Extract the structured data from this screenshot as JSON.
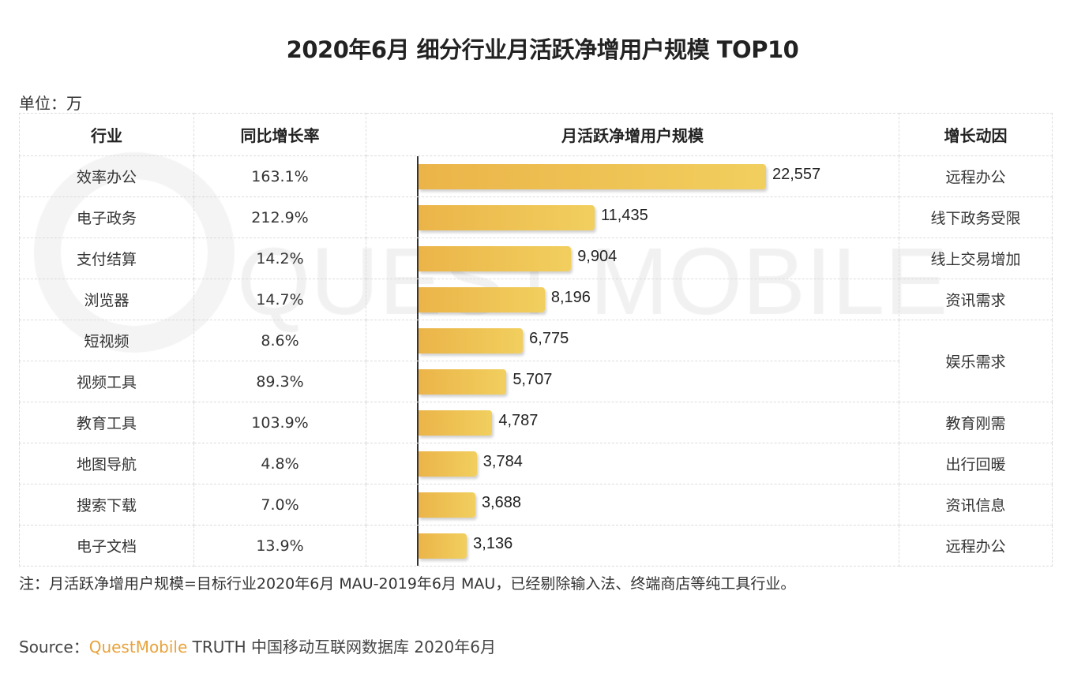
{
  "title": "2020年6月 细分行业月活跃净增用户规模 TOP10",
  "unit": "单位：万",
  "watermark": "QUEST MOBILE",
  "headers": [
    "行业",
    "同比增长率",
    "月活跃净增用户规模",
    "增长动因"
  ],
  "chart_data": {
    "type": "bar",
    "orientation": "horizontal",
    "title": "月活跃净增用户规模",
    "categories": [
      "效率办公",
      "电子政务",
      "支付结算",
      "浏览器",
      "短视频",
      "视频工具",
      "教育工具",
      "地图导航",
      "搜索下载",
      "电子文档"
    ],
    "values": [
      22557,
      11435,
      9904,
      8196,
      6775,
      5707,
      4787,
      3784,
      3688,
      3136
    ],
    "labels": [
      "22,557",
      "11,435",
      "9,904",
      "8,196",
      "6,775",
      "5,707",
      "4,787",
      "3,784",
      "3,688",
      "3,136"
    ],
    "growth": [
      "163.1%",
      "212.9%",
      "14.2%",
      "14.7%",
      "8.6%",
      "89.3%",
      "103.9%",
      "4.8%",
      "7.0%",
      "13.9%"
    ],
    "drivers": [
      "远程办公",
      "线下政务受限",
      "线上交易增加",
      "资讯需求",
      "娱乐需求",
      "娱乐需求",
      "教育刚需",
      "出行回暖",
      "资讯信息",
      "远程办公"
    ],
    "xlim": [
      0,
      22557
    ],
    "bar_color": "#efc456"
  },
  "note": "注：月活跃净增用户规模=目标行业2020年6月 MAU-2019年6月 MAU，已经剔除输入法、终端商店等纯工具行业。",
  "source": {
    "prefix": "Source：",
    "brand": "QuestMobile",
    "rest": " TRUTH 中国移动互联网数据库 2020年6月"
  }
}
